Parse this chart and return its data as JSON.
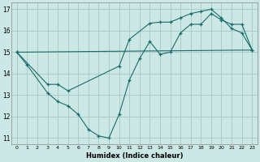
{
  "background_color": "#cce8e5",
  "grid_color": "#aaccca",
  "line_color": "#1a6b6b",
  "xlabel": "Humidex (Indice chaleur)",
  "xlim": [
    -0.5,
    23.5
  ],
  "ylim": [
    10.7,
    17.3
  ],
  "yticks": [
    11,
    12,
    13,
    14,
    15,
    16,
    17
  ],
  "xticks": [
    0,
    1,
    2,
    3,
    4,
    5,
    6,
    7,
    8,
    9,
    10,
    11,
    12,
    13,
    14,
    15,
    16,
    17,
    18,
    19,
    20,
    21,
    22,
    23
  ],
  "series1_x": [
    0,
    1,
    3,
    4,
    5,
    6,
    7,
    8,
    9,
    10,
    11,
    12,
    13,
    14,
    15,
    16,
    17,
    18,
    19,
    20,
    21,
    22,
    23
  ],
  "series1_y": [
    15.0,
    14.4,
    13.1,
    12.7,
    12.5,
    12.1,
    11.4,
    11.1,
    11.0,
    12.1,
    13.7,
    14.7,
    15.5,
    14.9,
    15.0,
    15.9,
    16.3,
    16.3,
    16.8,
    16.5,
    16.3,
    16.3,
    15.1
  ],
  "series2_x": [
    0,
    3,
    4,
    5,
    10,
    11,
    13,
    14,
    15,
    16,
    17,
    18,
    19,
    20,
    21,
    22,
    23
  ],
  "series2_y": [
    15.0,
    13.5,
    13.5,
    13.2,
    14.35,
    15.6,
    16.35,
    16.4,
    16.4,
    16.6,
    16.8,
    16.9,
    17.0,
    16.6,
    16.1,
    15.9,
    15.1
  ],
  "series3_x": [
    0,
    23
  ],
  "series3_y": [
    15.0,
    15.1
  ]
}
